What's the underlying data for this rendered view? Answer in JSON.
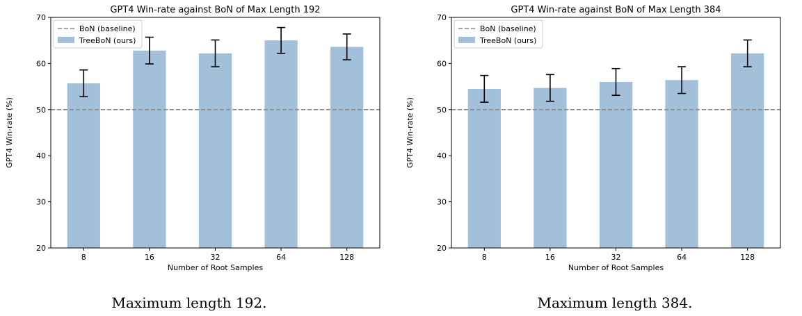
{
  "chart_data": [
    {
      "type": "bar",
      "title": "GPT4 Win-rate against BoN of Max Length 192",
      "xlabel": "Number of Root Samples",
      "ylabel": "GPT4 Win-rate (%)",
      "ylim": [
        20,
        70
      ],
      "yticks": [
        20,
        30,
        40,
        50,
        60,
        70
      ],
      "categories": [
        "8",
        "16",
        "32",
        "64",
        "128"
      ],
      "series": [
        {
          "name": "TreeBoN (ours)",
          "values": [
            55.7,
            62.8,
            62.2,
            65.0,
            63.6
          ],
          "error": [
            2.9,
            2.9,
            2.9,
            2.8,
            2.8
          ],
          "color": "#a3c0db"
        }
      ],
      "baseline": {
        "name": "BoN (baseline)",
        "value": 50,
        "color": "#888888"
      },
      "legend": "upper-left",
      "grid": false
    },
    {
      "type": "bar",
      "title": "GPT4 Win-rate against BoN of Max Length 384",
      "xlabel": "Number of Root Samples",
      "ylabel": "GPT4 Win-rate (%)",
      "ylim": [
        20,
        70
      ],
      "yticks": [
        20,
        30,
        40,
        50,
        60,
        70
      ],
      "categories": [
        "8",
        "16",
        "32",
        "64",
        "128"
      ],
      "series": [
        {
          "name": "TreeBoN (ours)",
          "values": [
            54.5,
            54.7,
            56.0,
            56.4,
            62.2
          ],
          "error": [
            2.9,
            2.9,
            2.9,
            2.9,
            2.9
          ],
          "color": "#a3c0db"
        }
      ],
      "baseline": {
        "name": "BoN (baseline)",
        "value": 50,
        "color": "#888888"
      },
      "legend": "upper-left",
      "grid": false
    }
  ],
  "captions": {
    "left": "Maximum length 192.",
    "right": "Maximum length 384."
  }
}
